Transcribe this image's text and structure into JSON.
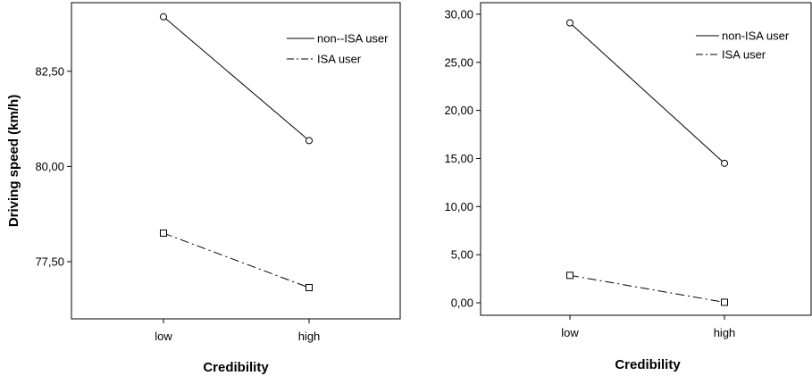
{
  "chart_data": [
    {
      "type": "line",
      "categories": [
        "low",
        "high"
      ],
      "series": [
        {
          "name": "non--ISA user",
          "values": [
            83.93,
            80.68
          ],
          "line_style": "solid",
          "marker": "circle"
        },
        {
          "name": "ISA user",
          "values": [
            78.25,
            76.82
          ],
          "line_style": "dash-dot",
          "marker": "square"
        }
      ],
      "xlabel": "Credibility",
      "ylabel": "Driving speed (km/h)",
      "yticks": [
        77.5,
        80.0,
        82.5
      ],
      "ytick_labels": [
        "77,50",
        "80,00",
        "82,50"
      ],
      "ylim": [
        76.0,
        84.3
      ],
      "legend": "top-right",
      "grid": false
    },
    {
      "type": "line",
      "categories": [
        "low",
        "high"
      ],
      "series": [
        {
          "name": "non-ISA user",
          "values": [
            29.1,
            14.5
          ],
          "line_style": "solid",
          "marker": "circle"
        },
        {
          "name": "ISA user",
          "values": [
            2.85,
            0.05
          ],
          "line_style": "dash-dot",
          "marker": "square"
        }
      ],
      "xlabel": "Credibility",
      "ylabel": "",
      "yticks": [
        0,
        5,
        10,
        15,
        20,
        25,
        30
      ],
      "ytick_labels": [
        "0,00",
        "5,00",
        "10,00",
        "15,00",
        "20,00",
        "25,00",
        "30,00"
      ],
      "ylim": [
        -1.3,
        31.2
      ],
      "legend": "top-right",
      "grid": false
    }
  ]
}
